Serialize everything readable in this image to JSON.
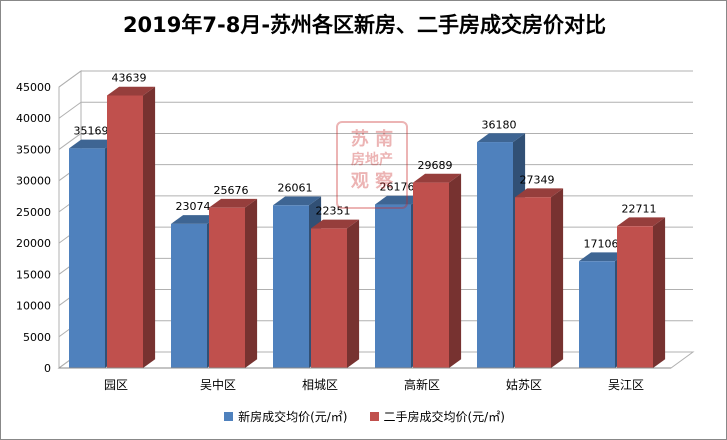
{
  "chart_data": {
    "type": "bar",
    "title": "2019年7-8月-苏州各区新房、二手房成交房价对比",
    "categories": [
      "园区",
      "吴中区",
      "相城区",
      "高新区",
      "姑苏区",
      "吴江区"
    ],
    "series": [
      {
        "name": "新房成交均价(元/㎡)",
        "values": [
          35169,
          23074,
          26061,
          26176,
          36180,
          17106
        ],
        "color": "#4F81BD"
      },
      {
        "name": "二手房成交均价(元/㎡)",
        "values": [
          43639,
          25676,
          22351,
          29689,
          27349,
          22711
        ],
        "color": "#C0504D"
      }
    ],
    "y_ticks": [
      "0",
      "5000",
      "10000",
      "15000",
      "20000",
      "25000",
      "30000",
      "35000",
      "40000",
      "45000"
    ],
    "ylim": [
      0,
      45000
    ],
    "grid": true,
    "legend_position": "bottom",
    "style": "3d-clustered-column"
  },
  "watermark": {
    "line1": "苏 南",
    "line2": "房地产",
    "line3": "观 察"
  }
}
